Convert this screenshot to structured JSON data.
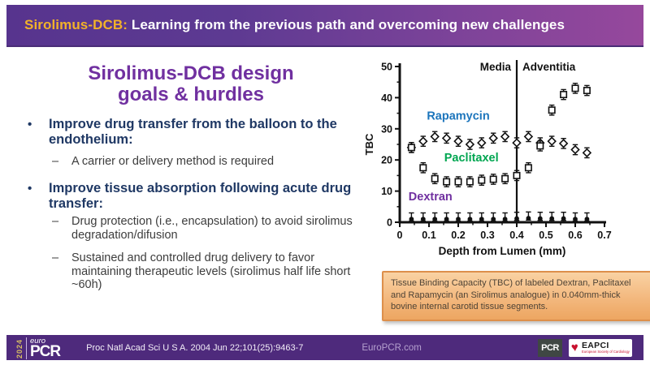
{
  "banner": {
    "title_prefix": "Sirolimus-DCB:",
    "title_rest": " Learning from the previous path and overcoming new challenges"
  },
  "content": {
    "heading_line1": "Sirolimus-DCB design",
    "heading_line2": "goals & hurdles",
    "bullets": [
      {
        "label": "Improve drug transfer from the balloon to the endothelium:",
        "subs": [
          "A carrier or delivery method is required"
        ]
      },
      {
        "label": "Improve tissue absorption following acute drug transfer:",
        "subs": [
          "Drug protection (i.e., encapsulation) to avoid sirolimus degradation/difusion",
          "Sustained and controlled drug delivery to favor maintaining therapeutic levels (sirolimus half life short ~60h)"
        ]
      }
    ]
  },
  "chart_data": {
    "type": "scatter",
    "xlabel": "Depth from Lumen (mm)",
    "ylabel": "TBC",
    "xlim": [
      0,
      0.7
    ],
    "ylim": [
      0,
      50
    ],
    "xticks": [
      "0",
      "0.1",
      "0.2",
      "0.3",
      "0.4",
      "0.5",
      "0.6",
      "0.7"
    ],
    "yticks": [
      "0",
      "10",
      "20",
      "30",
      "40",
      "50"
    ],
    "region_divider_x": 0.4,
    "regions": [
      {
        "label": "Media"
      },
      {
        "label": "Adventitia"
      }
    ],
    "x": [
      0.04,
      0.08,
      0.12,
      0.16,
      0.2,
      0.24,
      0.28,
      0.32,
      0.36,
      0.4,
      0.44,
      0.48,
      0.52,
      0.56,
      0.6,
      0.64
    ],
    "series": [
      {
        "name": "Rapamycin",
        "marker": "diamond-open",
        "label_color": "#1c75bc",
        "label_x": 0.2,
        "label_y": 33,
        "err_up": 1.6,
        "err_down": 1.6,
        "values": [
          24,
          26,
          27.5,
          27,
          26,
          25,
          25.5,
          27,
          27.5,
          25.5,
          27.5,
          25.5,
          26,
          25.3,
          23.3,
          22.3
        ]
      },
      {
        "name": "Paclitaxel",
        "marker": "square-open",
        "label_color": "#00a651",
        "label_x": 0.245,
        "label_y": 19.5,
        "err_up": 1.6,
        "err_down": 1.6,
        "values": [
          24,
          17.5,
          14,
          13,
          13,
          13,
          13.5,
          13.8,
          14,
          15,
          17.5,
          24.5,
          36,
          41,
          43,
          42.3
        ]
      },
      {
        "name": "Dextran",
        "marker": "circle-filled",
        "label_color": "#7030a0",
        "label_x": 0.105,
        "label_y": 7,
        "err_up": 2.0,
        "err_down": 0.6,
        "values": [
          1,
          1,
          1,
          1,
          1,
          1,
          1,
          1,
          1,
          1.2,
          1.3,
          1.2,
          1.2,
          1.2,
          1,
          1
        ]
      }
    ]
  },
  "caption": {
    "text": "Tissue Binding Capacity (TBC) of labeled Dextran, Paclitaxel and Rapamycin (an Sirolimus analogue) in 0.040mm-thick bovine internal carotid tissue segments."
  },
  "footer": {
    "logo": {
      "year": "2024",
      "euro": "euro",
      "pcr": "PCR"
    },
    "citation": "Proc Natl Acad Sci U S A. 2004 Jun 22;101(25):9463-7",
    "website": "EuroPCR.com",
    "pcr_badge": "PCR",
    "eapci": {
      "name": "EAPCI",
      "tagline": "European Society of Cardiology"
    }
  },
  "colors": {
    "banner_left": "#57348e",
    "banner_right": "#96489c",
    "title_accent": "#f2b229",
    "heading_purple": "#7030a0",
    "bullet_navy": "#1f3864",
    "footer_purple": "#4e2a7c",
    "caption_orange": "#f3b87e",
    "rapamycin_label": "#1c75bc",
    "paclitaxel_label": "#00a651",
    "dextran_label": "#7030a0"
  }
}
